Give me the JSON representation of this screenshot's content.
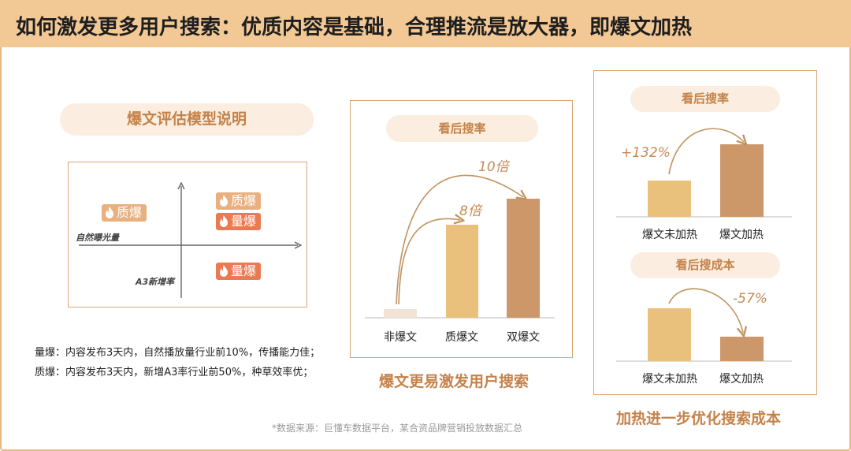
{
  "header": {
    "title": "如何激发更多用户搜索：优质内容是基础，合理推流是放大器，即爆文加热"
  },
  "left": {
    "pill_title": "爆文评估模型说明",
    "matrix": {
      "x_axis_label": "自然曝光量",
      "y_axis_label": "A3新增率",
      "tag_top_left": "质爆",
      "tag_top_right_1": "质爆",
      "tag_top_right_2": "量爆",
      "tag_bottom_right": "量爆",
      "flame_icon": "flame-icon"
    },
    "definitions": [
      "量爆：内容发布3天内，自然播放量行业前10%，传播能力佳；",
      "质爆：内容发布3天内，新增A3率行业前50%，种草效率优；"
    ]
  },
  "colors": {
    "header_bg": "#f2c894",
    "accent": "#c58249",
    "bar_pale": "#f3e3d7",
    "bar_light": "#e9c17d",
    "bar_dark": "#cc9769",
    "arrow": "#c1925f",
    "tag_red": "#ea7a52",
    "tag_light": "#e8b07f"
  },
  "chart_data": [
    {
      "type": "bar",
      "title": "看后搜率",
      "categories": [
        "非爆文",
        "质爆文",
        "双爆文"
      ],
      "values": [
        1,
        8,
        10
      ],
      "annotations": [
        "8倍",
        "10倍"
      ],
      "caption": "爆文更易激发用户搜索"
    },
    {
      "type": "bar",
      "title": "看后搜率",
      "categories": [
        "爆文未加热",
        "爆文加热"
      ],
      "values": [
        1,
        2.32
      ],
      "annotations": [
        "+132%"
      ]
    },
    {
      "type": "bar",
      "title": "看后搜成本",
      "categories": [
        "爆文未加热",
        "爆文加热"
      ],
      "values": [
        1,
        0.43
      ],
      "annotations": [
        "-57%"
      ]
    }
  ],
  "right": {
    "caption": "加热进一步优化搜索成本"
  },
  "footer": {
    "source": "*数据来源：巨懂车数据平台，某合资品牌营销投放数据汇总"
  }
}
